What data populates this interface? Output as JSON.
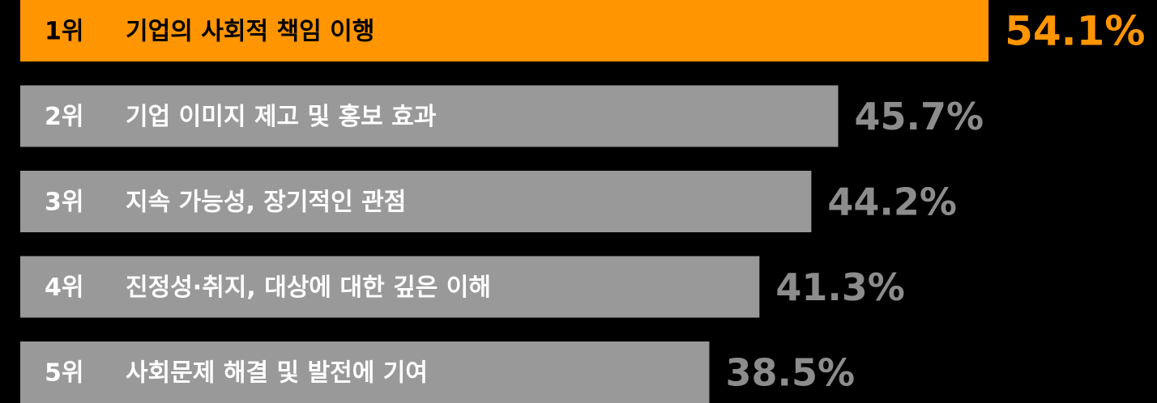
{
  "chart_data": {
    "type": "bar",
    "ranks": [
      "1위",
      "2위",
      "3위",
      "4위",
      "5위"
    ],
    "categories": [
      "기업의 사회적 책임 이행",
      "기업 이미지 제고 및 홍보 효과",
      "지속 가능성, 장기적인 관점",
      "진정성·취지, 대상에 대한 깊은 이해",
      "사회문제 해결 및 발전에 기여"
    ],
    "values": [
      54.1,
      45.7,
      44.2,
      41.3,
      38.5
    ],
    "value_labels": [
      "54.1%",
      "45.7%",
      "44.2%",
      "41.3%",
      "38.5%"
    ],
    "colors": [
      "#ff9500",
      "#999999",
      "#999999",
      "#999999",
      "#999999"
    ],
    "text_colors": [
      "#000000",
      "#ffffff",
      "#ffffff",
      "#ffffff",
      "#ffffff"
    ],
    "value_label_colors": [
      "#ff9500",
      "#8c8c8c",
      "#8c8c8c",
      "#8c8c8c",
      "#8c8c8c"
    ]
  }
}
